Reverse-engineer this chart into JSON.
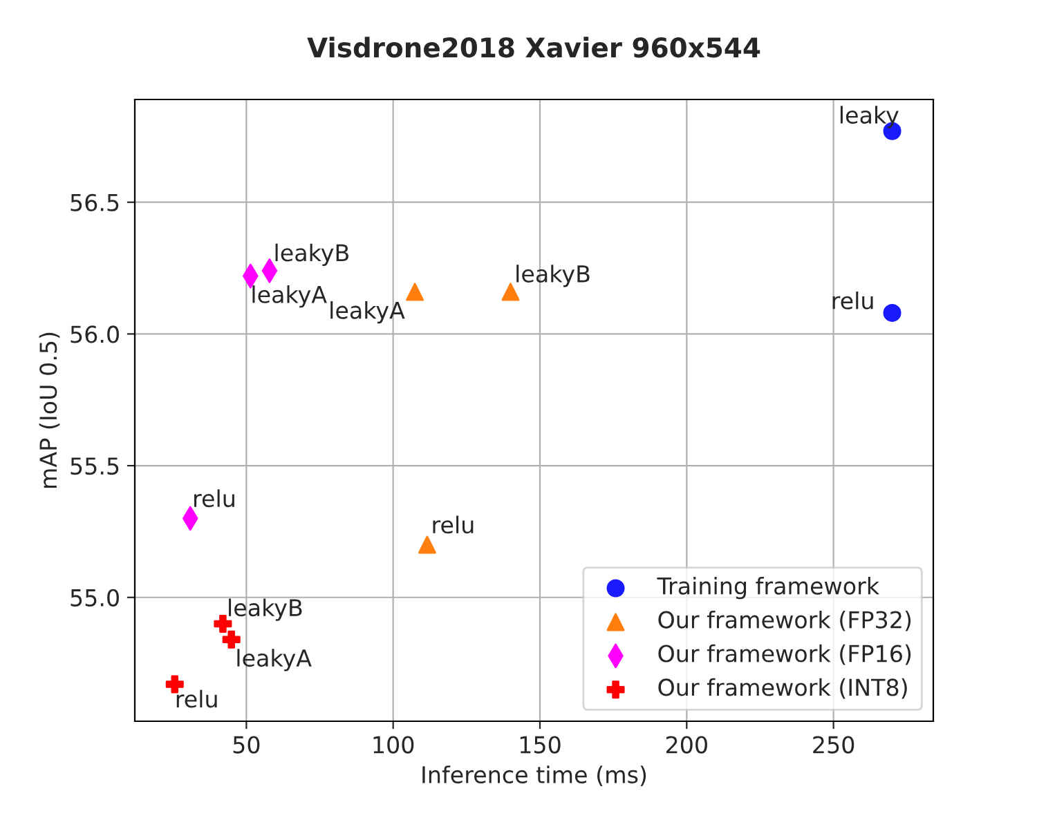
{
  "chart_data": {
    "type": "scatter",
    "title": "Visdrone2018 Xavier 960x544",
    "xlabel": "Inference time (ms)",
    "ylabel": "mAP (IoU 0.5)",
    "xlim": [
      12,
      284
    ],
    "ylim": [
      54.53,
      56.89
    ],
    "xticks": [
      50,
      100,
      150,
      200,
      250
    ],
    "yticks": [
      {
        "value": 55,
        "label": "55.0"
      },
      55.5,
      {
        "value": 56,
        "label": "56.0"
      },
      56.5
    ],
    "grid": true,
    "legend": "bottom right",
    "series": [
      {
        "name": "Training framework",
        "color": "#1a1aff",
        "marker": "circle",
        "x": [
          270,
          270
        ],
        "values": [
          56.77,
          56.08
        ]
      },
      {
        "name": "Our framework (FP32)",
        "color": "#ff7f0e",
        "marker": "triangle",
        "x": [
          107.4,
          140,
          111.6
        ],
        "values": [
          56.16,
          56.16,
          55.2
        ]
      },
      {
        "name": "Our framework (FP16)",
        "color": "#ff00ff",
        "marker": "diamond",
        "x": [
          51.4,
          57.9,
          30.9
        ],
        "values": [
          56.22,
          56.24,
          55.3
        ]
      },
      {
        "name": "Our framework (INT8)",
        "color": "#ff0000",
        "marker": "cross",
        "x": [
          42,
          44.9,
          25.6
        ],
        "values": [
          54.9,
          54.84,
          54.67
        ]
      }
    ],
    "annotations": [
      {
        "text": "leaky",
        "x": 270,
        "y": 56.77
      },
      {
        "text": "relu",
        "x": 270,
        "y": 56.08
      },
      {
        "text": "leakyA",
        "x": 107.4,
        "y": 56.16
      },
      {
        "text": "leakyB",
        "x": 140,
        "y": 56.16
      },
      {
        "text": "relu",
        "x": 111.6,
        "y": 55.2
      },
      {
        "text": "leakyA",
        "x": 51.4,
        "y": 56.22
      },
      {
        "text": "leakyB",
        "x": 57.9,
        "y": 56.24
      },
      {
        "text": "relu",
        "x": 30.9,
        "y": 55.3
      },
      {
        "text": "leakyB",
        "x": 42,
        "y": 54.9
      },
      {
        "text": "leakyA",
        "x": 44.9,
        "y": 54.84
      },
      {
        "text": "relu",
        "x": 25.6,
        "y": 54.67
      }
    ]
  }
}
